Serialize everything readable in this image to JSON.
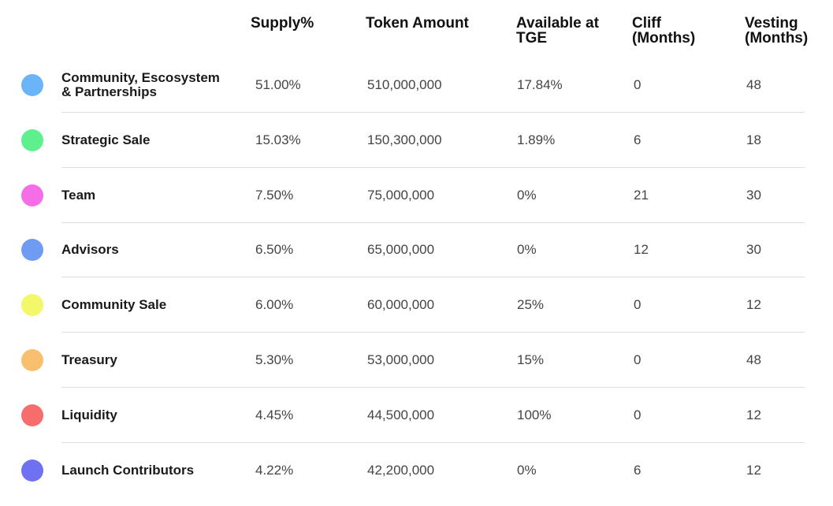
{
  "table": {
    "headers": [
      "Supply%",
      "Token Amount",
      "Available at TGE",
      "Cliff (Months)",
      "Vesting (Months)"
    ],
    "rows": [
      {
        "label": "Community, Escosystem & Partnerships",
        "color": "#6ab4f7",
        "cells": [
          "51.00%",
          "510,000,000",
          "17.84%",
          "0",
          "48"
        ]
      },
      {
        "label": "Strategic Sale",
        "color": "#5ef08f",
        "cells": [
          "15.03%",
          "150,300,000",
          "1.89%",
          "6",
          "18"
        ]
      },
      {
        "label": "Team",
        "color": "#f56ee8",
        "cells": [
          "7.50%",
          "75,000,000",
          "0%",
          "21",
          "30"
        ]
      },
      {
        "label": "Advisors",
        "color": "#6f9cf2",
        "cells": [
          "6.50%",
          "65,000,000",
          "0%",
          "12",
          "30"
        ]
      },
      {
        "label": "Community Sale",
        "color": "#f3f76a",
        "cells": [
          "6.00%",
          "60,000,000",
          "25%",
          "0",
          "12"
        ]
      },
      {
        "label": "Treasury",
        "color": "#f8c06e",
        "cells": [
          "5.30%",
          "53,000,000",
          "15%",
          "0",
          "48"
        ]
      },
      {
        "label": "Liquidity",
        "color": "#f76c6c",
        "cells": [
          "4.45%",
          "44,500,000",
          "100%",
          "0",
          "12"
        ]
      },
      {
        "label": "Launch Contributors",
        "color": "#7071f2",
        "cells": [
          "4.22%",
          "42,200,000",
          "0%",
          "6",
          "12"
        ]
      }
    ]
  }
}
